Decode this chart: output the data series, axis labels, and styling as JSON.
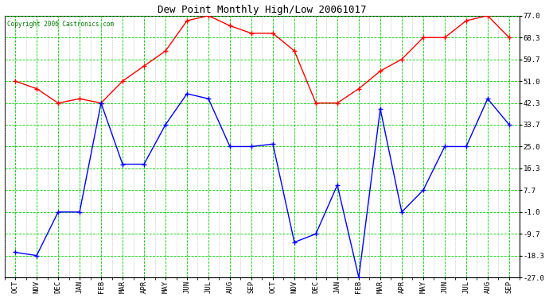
{
  "title": "Dew Point Monthly High/Low 20061017",
  "copyright": "Copyright 2006 Castronics.com",
  "x_labels": [
    "OCT",
    "NOV",
    "DEC",
    "JAN",
    "FEB",
    "MAR",
    "APR",
    "MAY",
    "JUN",
    "JUL",
    "AUG",
    "SEP",
    "OCT",
    "NOV",
    "DEC",
    "JAN",
    "FEB",
    "MAR",
    "APR",
    "MAY",
    "JUN",
    "JUL",
    "AUG",
    "SEP"
  ],
  "high_values": [
    51.0,
    48.0,
    42.3,
    44.0,
    42.3,
    51.0,
    57.0,
    63.0,
    75.0,
    77.0,
    73.0,
    70.0,
    70.0,
    63.0,
    42.3,
    42.3,
    48.0,
    55.0,
    59.7,
    68.3,
    68.3,
    75.0,
    77.0,
    68.3
  ],
  "low_values": [
    -17.0,
    -18.3,
    -1.0,
    -1.0,
    42.3,
    18.0,
    18.0,
    33.7,
    46.0,
    44.0,
    25.0,
    25.0,
    26.0,
    -13.0,
    -9.7,
    9.7,
    -27.0,
    40.0,
    -1.0,
    7.7,
    25.0,
    25.0,
    44.0,
    33.7
  ],
  "yticks": [
    77.0,
    68.3,
    59.7,
    51.0,
    42.3,
    33.7,
    25.0,
    16.3,
    7.7,
    -1.0,
    -9.7,
    -18.3,
    -27.0
  ],
  "ymin": -27.0,
  "ymax": 77.0,
  "bg_color": "#ffffff",
  "plot_bg_color": "#ffffff",
  "grid_major_color": "#00cc00",
  "grid_minor_color": "#ccffcc",
  "high_color": "#ff0000",
  "low_color": "#0000ff",
  "title_color": "#000000",
  "axis_label_color": "#000000",
  "border_color": "#000000",
  "copyright_color": "#007700"
}
